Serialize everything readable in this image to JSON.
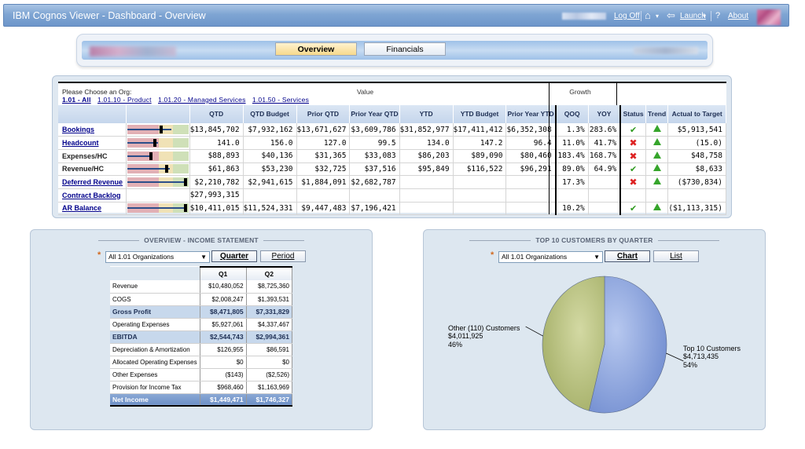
{
  "window": {
    "title": "IBM Cognos Viewer - Dashboard - Overview",
    "log_off": "Log Off",
    "launch": "Launch",
    "about": "About"
  },
  "tabs": [
    {
      "label": "Overview",
      "active": true
    },
    {
      "label": "Financials",
      "active": false
    }
  ],
  "kpi": {
    "org_prompt": "Please Choose an Org:",
    "orgs": [
      "1.01 - All",
      "1.01.10 - Product",
      "1.01.20 - Managed Services",
      "1.01.50 - Services"
    ],
    "group_value": "Value",
    "group_growth": "Growth",
    "columns": [
      "QTD",
      "QTD Budget",
      "Prior QTD",
      "Prior Year QTD",
      "YTD",
      "YTD Budget",
      "Prior Year YTD",
      "QOQ",
      "YOY",
      "Status",
      "Trend",
      "Actual to Target"
    ],
    "rows": [
      {
        "label": "Bookings",
        "link": true,
        "marker": 0.55,
        "bar": 0.72,
        "cells": [
          "$13,845,702",
          "$7,932,162",
          "$13,671,627",
          "$3,609,786",
          "$31,852,977",
          "$17,411,412",
          "$6,352,308",
          "1.3%",
          "283.6%"
        ],
        "status": "ok",
        "trend": "up",
        "att": "$5,913,541"
      },
      {
        "label": "Headcount",
        "link": true,
        "marker": 0.45,
        "bar": 0.5,
        "cells": [
          "141.0",
          "156.0",
          "127.0",
          "99.5",
          "134.0",
          "147.2",
          "96.4",
          "11.0%",
          "41.7%"
        ],
        "status": "bad",
        "trend": "up",
        "att": "(15.0)"
      },
      {
        "label": "Expenses/HC",
        "link": false,
        "marker": 0.38,
        "bar": 0.4,
        "cells": [
          "$88,893",
          "$40,136",
          "$31,365",
          "$33,083",
          "$86,203",
          "$89,090",
          "$80,460",
          "183.4%",
          "168.7%"
        ],
        "status": "bad",
        "trend": "up",
        "att": "$48,758"
      },
      {
        "label": "Revenue/HC",
        "link": false,
        "marker": 0.65,
        "bar": 0.7,
        "cells": [
          "$61,863",
          "$53,230",
          "$32,725",
          "$37,516",
          "$95,849",
          "$116,522",
          "$96,291",
          "89.0%",
          "64.9%"
        ],
        "status": "ok",
        "trend": "up",
        "att": "$8,633"
      },
      {
        "label": "Deferred Revenue",
        "link": true,
        "marker": 0.97,
        "bar": 0.97,
        "cells": [
          "$2,210,782",
          "$2,941,615",
          "$1,884,091",
          "$2,682,787",
          "",
          "",
          "",
          "17.3%",
          ""
        ],
        "status": "bad",
        "trend": "up",
        "att": "($730,834)"
      },
      {
        "label": "Contract Backlog",
        "link": true,
        "marker": null,
        "bar": null,
        "cells": [
          "$27,993,315",
          "",
          "",
          "",
          "",
          "",
          "",
          "",
          ""
        ],
        "status": "",
        "trend": "",
        "att": ""
      },
      {
        "label": "AR Balance",
        "link": true,
        "marker": 0.97,
        "bar": 0.97,
        "cells": [
          "$10,411,015",
          "$11,524,331",
          "$9,447,483",
          "$7,196,421",
          "",
          "",
          "",
          "10.2%",
          ""
        ],
        "status": "ok",
        "trend": "up",
        "att": "($1,113,315)"
      }
    ]
  },
  "income": {
    "title": "OVERVIEW - INCOME STATEMENT",
    "org_select": "All 1.01 Organizations",
    "btn_quarter": "Quarter",
    "btn_period": "Period",
    "columns": [
      "Q1",
      "Q2"
    ],
    "rows": [
      {
        "label": "Revenue",
        "q1": "$10,480,052",
        "q2": "$8,725,360",
        "kind": "normal"
      },
      {
        "label": "COGS",
        "q1": "$2,008,247",
        "q2": "$1,393,531",
        "kind": "normal"
      },
      {
        "label": "Gross Profit",
        "q1": "$8,471,805",
        "q2": "$7,331,829",
        "kind": "sub"
      },
      {
        "label": "Operating Expenses",
        "q1": "$5,927,061",
        "q2": "$4,337,467",
        "kind": "normal"
      },
      {
        "label": "EBITDA",
        "q1": "$2,544,743",
        "q2": "$2,994,361",
        "kind": "sub"
      },
      {
        "label": "Depreciation & Amortization",
        "q1": "$126,955",
        "q2": "$86,591",
        "kind": "normal"
      },
      {
        "label": "Allocated Operating Expenses",
        "q1": "$0",
        "q2": "$0",
        "kind": "normal"
      },
      {
        "label": "Other Expenses",
        "q1": "($143)",
        "q2": "($2,526)",
        "kind": "normal"
      },
      {
        "label": "Provision for Income Tax",
        "q1": "$968,460",
        "q2": "$1,163,969",
        "kind": "normal"
      },
      {
        "label": "Net Income",
        "q1": "$1,449,471",
        "q2": "$1,746,327",
        "kind": "tot"
      }
    ]
  },
  "customers": {
    "title": "TOP 10 CUSTOMERS BY QUARTER",
    "org_select": "All 1.01 Organizations",
    "btn_chart": "Chart",
    "btn_list": "List",
    "colors": {
      "top": "#7f9ad8",
      "other": "#b5be78"
    }
  },
  "chart_data": {
    "type": "pie",
    "title": "TOP 10 CUSTOMERS BY QUARTER",
    "slices": [
      {
        "name": "Top 10 Customers",
        "value": 4713435,
        "percent": 54,
        "value_label": "$4,713,435",
        "percent_label": "54%"
      },
      {
        "name": "Other (110) Customers",
        "value": 4011925,
        "percent": 46,
        "value_label": "$4,011,925",
        "percent_label": "46%"
      }
    ]
  }
}
